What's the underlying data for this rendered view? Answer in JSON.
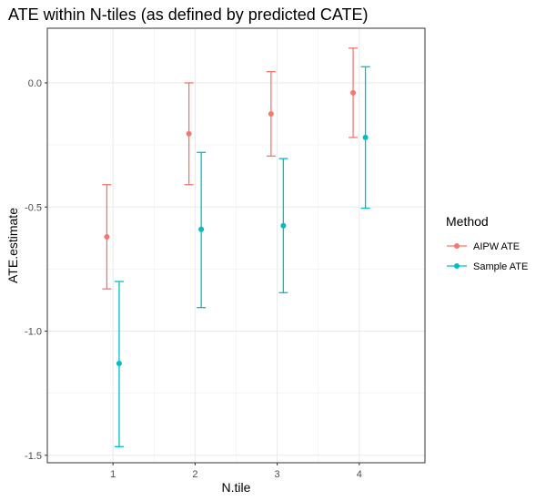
{
  "chart_data": {
    "type": "scatter",
    "title": "ATE within N-tiles (as defined by predicted CATE)",
    "xlabel": "N.tile",
    "ylabel": "ATE.estimate",
    "categories": [
      "1",
      "2",
      "3",
      "4"
    ],
    "x_tick_labels": [
      "1",
      "2",
      "3",
      "4"
    ],
    "y_tick_values": [
      0.0,
      -0.5,
      -1.0,
      -1.5
    ],
    "y_tick_labels": [
      "0.0",
      "-0.5",
      "-1.0",
      "-1.5"
    ],
    "ylim": [
      -1.53,
      0.22
    ],
    "grid": true,
    "error_bars": true,
    "legend": {
      "title": "Method",
      "position": "right"
    },
    "series": [
      {
        "name": "AIPW ATE",
        "color": "#F8766D",
        "values": [
          -0.62,
          -0.205,
          -0.125,
          -0.04
        ],
        "lower": [
          -0.83,
          -0.41,
          -0.295,
          -0.22
        ],
        "upper": [
          -0.41,
          0.0,
          0.045,
          0.14
        ]
      },
      {
        "name": "Sample ATE",
        "color": "#00BFC4",
        "values": [
          -1.13,
          -0.59,
          -0.575,
          -0.22
        ],
        "lower": [
          -1.465,
          -0.905,
          -0.845,
          -0.505
        ],
        "upper": [
          -0.8,
          -0.28,
          -0.305,
          0.065
        ]
      }
    ]
  }
}
